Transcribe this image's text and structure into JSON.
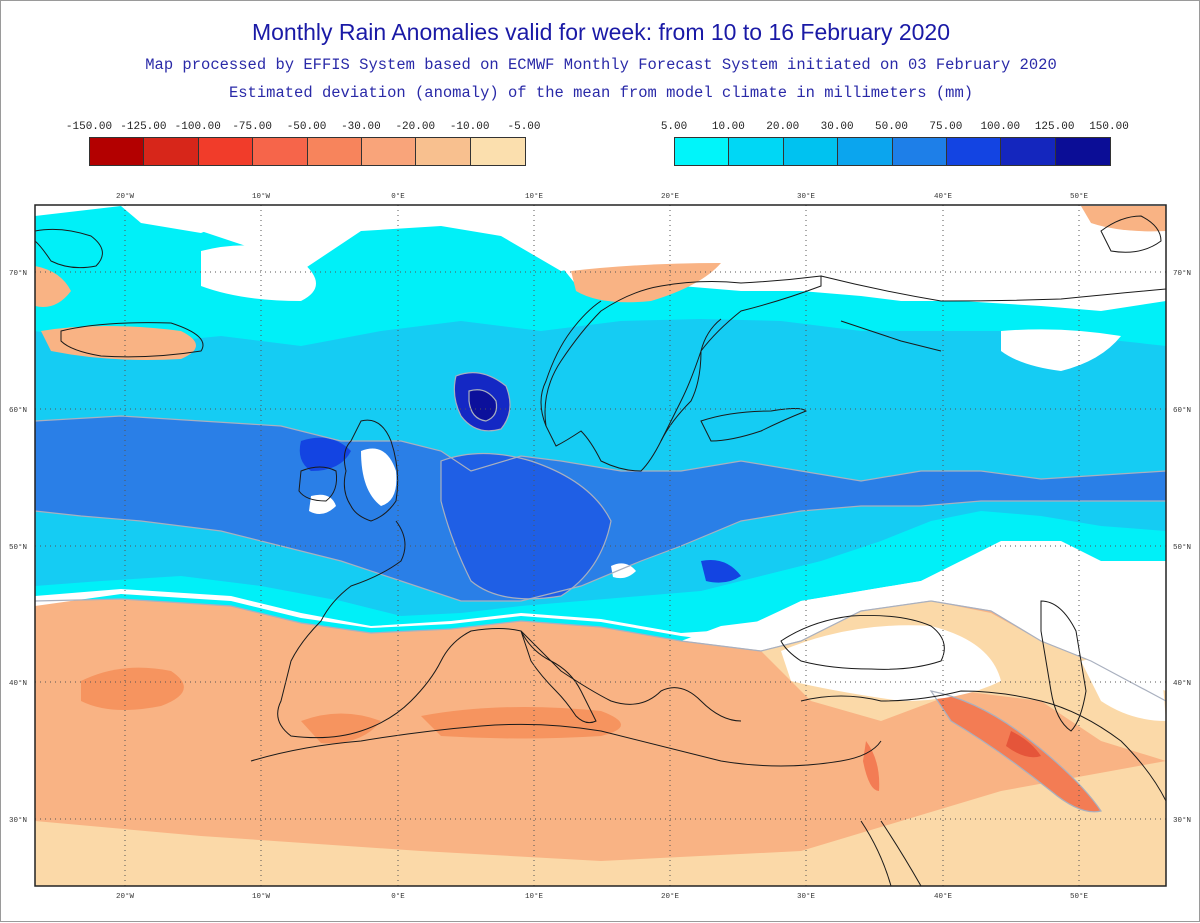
{
  "title": "Monthly Rain Anomalies valid for week: from 10 to 16 February 2020",
  "subtitle1": "Map processed by EFFIS System based on ECMWF Monthly Forecast System initiated on 03 February 2020",
  "subtitle2": "Estimated deviation (anomaly) of the mean from model climate in millimeters (mm)",
  "legend_negative": {
    "labels": [
      "-150.00",
      "-125.00",
      "-100.00",
      "-75.00",
      "-50.00",
      "-30.00",
      "-20.00",
      "-10.00",
      "-5.00"
    ],
    "colors": [
      "#b30000",
      "#d7261a",
      "#f13c2a",
      "#f6654a",
      "#f7845c",
      "#f9a47a",
      "#f8c08f",
      "#fbdfae"
    ]
  },
  "legend_positive": {
    "labels": [
      "5.00",
      "10.00",
      "20.00",
      "30.00",
      "50.00",
      "75.00",
      "100.00",
      "125.00",
      "150.00"
    ],
    "colors": [
      "#00f5fa",
      "#00d7f5",
      "#00c2f0",
      "#0ba5ee",
      "#1e7fe8",
      "#1344e2",
      "#1426be",
      "#0b0d96"
    ]
  },
  "longitude_ticks": [
    "20°W",
    "10°W",
    "0°E",
    "10°E",
    "20°E",
    "30°E",
    "40°E",
    "50°E"
  ],
  "latitude_ticks": [
    "70°N",
    "60°N",
    "50°N",
    "40°N",
    "30°N"
  ],
  "colors": {
    "water_white": "#ffffff",
    "contour": "#a9b0bf",
    "coast": "#1a1a1a",
    "title": "#1a1aa6"
  }
}
